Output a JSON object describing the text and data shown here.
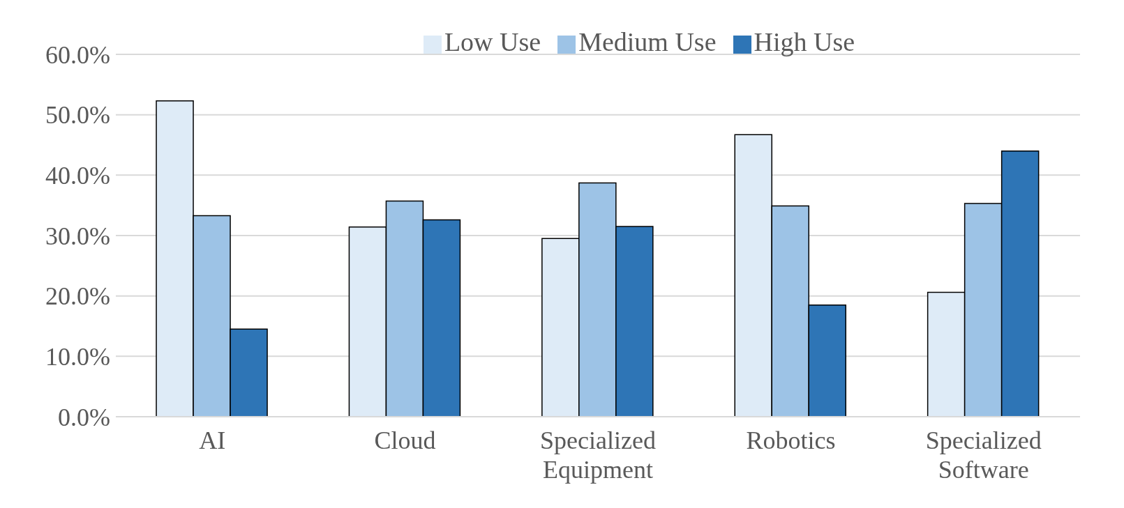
{
  "chart_data": {
    "type": "bar",
    "categories": [
      "AI",
      "Cloud",
      "Specialized Equipment",
      "Robotics",
      "Specialized Software"
    ],
    "series": [
      {
        "name": "Low Use",
        "color": "#deebf7",
        "values": [
          52.3,
          31.4,
          29.5,
          46.7,
          20.6
        ]
      },
      {
        "name": "Medium Use",
        "color": "#9dc3e6",
        "values": [
          33.3,
          35.7,
          38.7,
          34.9,
          35.3
        ]
      },
      {
        "name": "High Use",
        "color": "#2e75b6",
        "values": [
          14.5,
          32.6,
          31.5,
          18.5,
          44.0
        ]
      }
    ],
    "ylim": [
      0,
      60
    ],
    "yticks": [
      {
        "value": 0,
        "label": "0.0%"
      },
      {
        "value": 10,
        "label": "10.0%"
      },
      {
        "value": 20,
        "label": "20.0%"
      },
      {
        "value": 30,
        "label": "30.0%"
      },
      {
        "value": 40,
        "label": "40.0%"
      },
      {
        "value": 50,
        "label": "50.0%"
      },
      {
        "value": 60,
        "label": "60.0%"
      }
    ],
    "grid": "y",
    "legend": "top"
  }
}
